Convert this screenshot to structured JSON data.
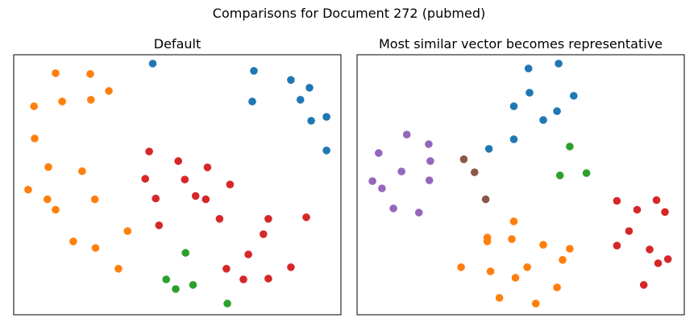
{
  "figure": {
    "suptitle": "Comparisons for Document 272 (pubmed)"
  },
  "chart_data": [
    {
      "type": "scatter",
      "title": "Default",
      "xlabel": "",
      "ylabel": "",
      "axes_visible": false,
      "grid": false,
      "xlim": [
        0,
        100
      ],
      "ylim": [
        0,
        100
      ],
      "series": [
        {
          "color": "#1f77b4",
          "points": [
            [
              42.5,
              96.6
            ],
            [
              73.4,
              93.8
            ],
            [
              84.7,
              90.3
            ],
            [
              90.4,
              87.3
            ],
            [
              72.9,
              82.0
            ],
            [
              87.6,
              82.7
            ],
            [
              90.9,
              74.6
            ],
            [
              95.6,
              76.1
            ],
            [
              95.6,
              63.2
            ]
          ]
        },
        {
          "color": "#ff7f0e",
          "points": [
            [
              12.8,
              92.9
            ],
            [
              23.4,
              92.6
            ],
            [
              29.1,
              86.1
            ],
            [
              14.8,
              82.0
            ],
            [
              23.6,
              82.7
            ],
            [
              6.2,
              80.2
            ],
            [
              6.4,
              67.8
            ],
            [
              10.6,
              56.8
            ],
            [
              20.9,
              55.2
            ],
            [
              4.4,
              48.1
            ],
            [
              10.3,
              44.4
            ],
            [
              24.8,
              44.4
            ],
            [
              12.8,
              40.4
            ],
            [
              34.8,
              32.2
            ],
            [
              18.2,
              28.2
            ],
            [
              25.0,
              25.7
            ],
            [
              32.0,
              17.7
            ]
          ]
        },
        {
          "color": "#2ca02c",
          "points": [
            [
              52.5,
              23.8
            ],
            [
              46.6,
              13.6
            ],
            [
              54.8,
              11.5
            ],
            [
              49.5,
              9.9
            ],
            [
              65.3,
              4.3
            ]
          ]
        },
        {
          "color": "#d62728",
          "points": [
            [
              41.4,
              62.8
            ],
            [
              50.3,
              59.1
            ],
            [
              59.2,
              56.7
            ],
            [
              40.2,
              52.3
            ],
            [
              52.3,
              52.0
            ],
            [
              66.1,
              50.1
            ],
            [
              43.4,
              44.7
            ],
            [
              55.6,
              45.7
            ],
            [
              58.7,
              44.4
            ],
            [
              62.9,
              36.9
            ],
            [
              77.8,
              36.9
            ],
            [
              89.4,
              37.5
            ],
            [
              44.4,
              34.4
            ],
            [
              76.3,
              31.0
            ],
            [
              71.7,
              23.2
            ],
            [
              65.0,
              17.7
            ],
            [
              84.7,
              18.3
            ],
            [
              70.2,
              13.6
            ],
            [
              77.8,
              13.9
            ]
          ]
        }
      ]
    },
    {
      "type": "scatter",
      "title": "Most similar vector becomes representative",
      "xlabel": "",
      "ylabel": "",
      "axes_visible": false,
      "grid": false,
      "xlim": [
        0,
        100
      ],
      "ylim": [
        0,
        100
      ],
      "series": [
        {
          "color": "#1f77b4",
          "points": [
            [
              52.4,
              94.7
            ],
            [
              61.6,
              96.6
            ],
            [
              52.7,
              85.4
            ],
            [
              66.2,
              84.2
            ],
            [
              47.9,
              80.2
            ],
            [
              61.1,
              78.3
            ],
            [
              56.9,
              74.9
            ],
            [
              47.9,
              67.5
            ],
            [
              40.3,
              63.8
            ]
          ]
        },
        {
          "color": "#ff7f0e",
          "points": [
            [
              47.9,
              35.9
            ],
            [
              39.8,
              29.7
            ],
            [
              47.3,
              29.1
            ],
            [
              39.8,
              28.2
            ],
            [
              56.9,
              26.9
            ],
            [
              65.0,
              25.4
            ],
            [
              62.8,
              21.1
            ],
            [
              31.8,
              18.3
            ],
            [
              52.0,
              18.3
            ],
            [
              40.8,
              16.7
            ],
            [
              48.4,
              14.2
            ],
            [
              61.1,
              10.5
            ],
            [
              43.5,
              6.5
            ],
            [
              54.6,
              4.3
            ]
          ]
        },
        {
          "color": "#2ca02c",
          "points": [
            [
              65.0,
              64.7
            ],
            [
              62.0,
              53.6
            ],
            [
              70.1,
              54.5
            ]
          ]
        },
        {
          "color": "#d62728",
          "points": [
            [
              79.4,
              43.8
            ],
            [
              91.5,
              44.1
            ],
            [
              85.6,
              40.4
            ],
            [
              94.1,
              39.5
            ],
            [
              83.1,
              32.2
            ],
            [
              79.4,
              26.6
            ],
            [
              89.4,
              25.1
            ],
            [
              92.0,
              19.8
            ],
            [
              95.0,
              21.4
            ],
            [
              87.6,
              11.5
            ]
          ]
        },
        {
          "color": "#9467bd",
          "points": [
            [
              15.2,
              69.3
            ],
            [
              6.6,
              62.2
            ],
            [
              21.9,
              65.6
            ],
            [
              22.4,
              59.1
            ],
            [
              13.6,
              55.1
            ],
            [
              4.7,
              51.4
            ],
            [
              7.6,
              48.6
            ],
            [
              22.1,
              51.7
            ],
            [
              11.1,
              40.9
            ],
            [
              18.9,
              39.3
            ]
          ]
        },
        {
          "color": "#8c564b",
          "points": [
            [
              32.6,
              59.8
            ],
            [
              35.9,
              54.8
            ],
            [
              39.3,
              44.4
            ]
          ]
        }
      ]
    }
  ]
}
